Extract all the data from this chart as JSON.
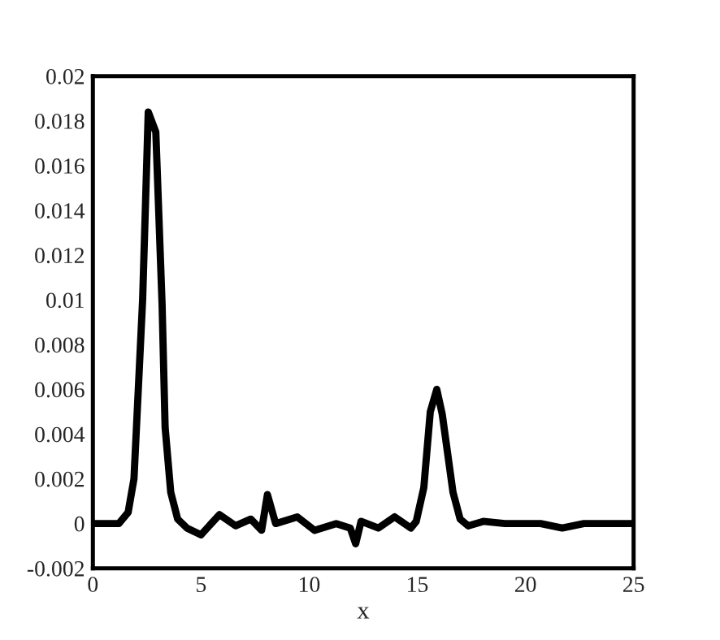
{
  "chart_data": {
    "type": "line",
    "xlabel": "x",
    "x": [
      0,
      1,
      1.2,
      1.63,
      1.9,
      2.3,
      2.56,
      2.91,
      3.2,
      3.34,
      3.6,
      3.92,
      4.35,
      5,
      5.85,
      6.6,
      7.3,
      7.8,
      8.07,
      8.45,
      9.45,
      10.25,
      11.25,
      11.9,
      12.15,
      12.4,
      13.2,
      13.95,
      14.7,
      14.95,
      15.3,
      15.6,
      15.9,
      16.15,
      16.65,
      16.98,
      17.35,
      18.05,
      19.05,
      20.7,
      21.7,
      22.7,
      25
    ],
    "series": [
      {
        "color": "#000000",
        "values": [
          0,
          0,
          0,
          0.0005,
          0.002,
          0.01,
          0.0184,
          0.0175,
          0.0098,
          0.0043,
          0.0014,
          0.0002,
          -0.0002,
          -0.0005,
          0.0004,
          -0.0001,
          0.0002,
          -0.0003,
          0.0013,
          0,
          0.0003,
          -0.0003,
          0,
          -0.0002,
          -0.0009,
          0.0001,
          -0.0002,
          0.0003,
          -0.0002,
          0.0001,
          0.0016,
          0.005,
          0.006,
          0.0049,
          0.0014,
          0.0002,
          -0.0001,
          0.0001,
          0,
          0,
          -0.0002,
          0,
          0
        ]
      }
    ],
    "xlim": [
      0,
      25
    ],
    "xticks": [
      0,
      5,
      10,
      15,
      20,
      25
    ],
    "ylim": [
      -0.002,
      0.02
    ],
    "yticks": [
      -0.002,
      0,
      0.002,
      0.004,
      0.006,
      0.008,
      0.01,
      0.012,
      0.014,
      0.016,
      0.018,
      0.02
    ],
    "grid": false,
    "legend": false,
    "marker": "none",
    "line_style": "solid"
  }
}
